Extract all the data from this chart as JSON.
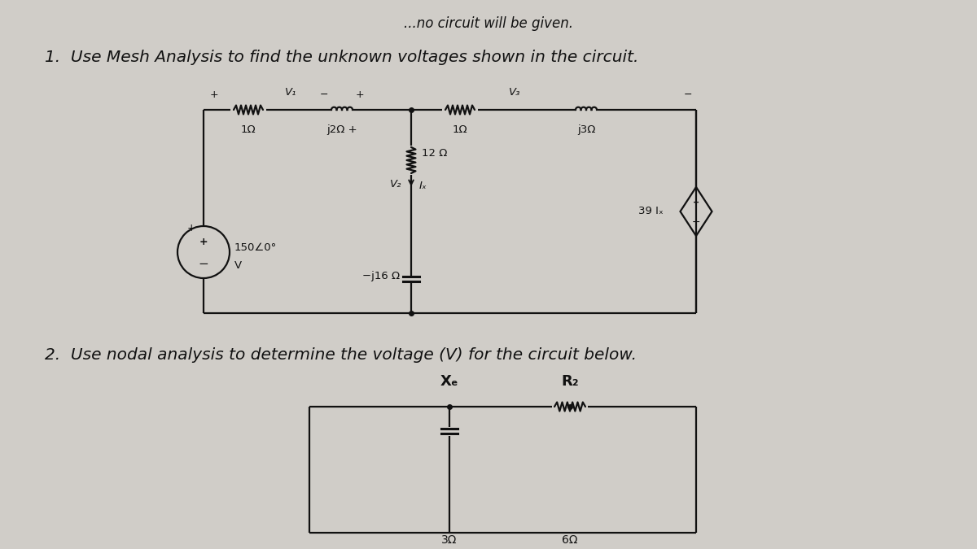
{
  "bg_color": "#d0cdc8",
  "text_color": "#111111",
  "line_color": "#111111",
  "title1": "1.  Use Mesh Analysis to find the unknown voltages shown in the circuit.",
  "title2": "2.  Use nodal analysis to determine the voltage (V) for the circuit below.",
  "header_text": "...no circuit will be given.",
  "title_fontsize": 14.5,
  "header_fontsize": 12
}
